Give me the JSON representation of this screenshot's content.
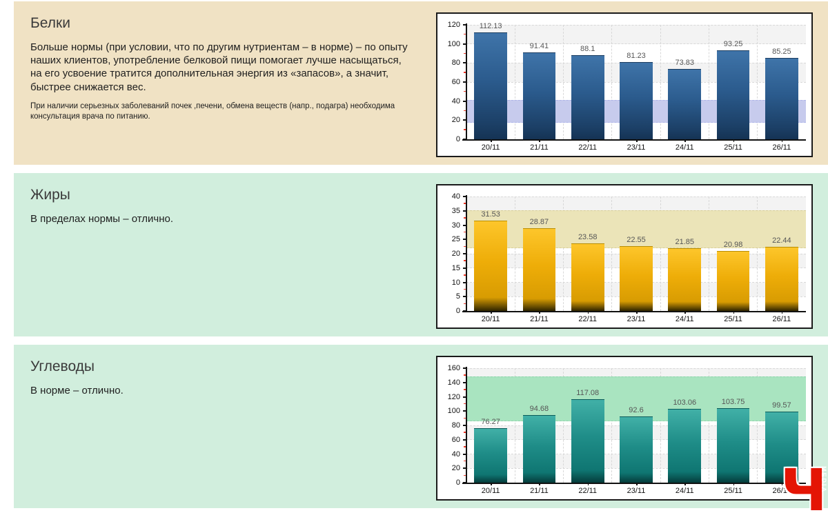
{
  "watermark": {
    "letter": "Ч",
    "vertical_label": "MEDIA",
    "color": "#e41505"
  },
  "panels": [
    {
      "title": "Белки",
      "body": "Больше нормы (при условии, что по другим нутриентам – в норме) – по опыту наших клиентов, употребление белковой пищи помогает лучше насыщаться, на его усвоение тратится дополнительная энергия из «запасов», а значит, быстрее снижается вес.",
      "note": "При наличии серьезных заболеваний почек ,печени, обмена веществ (напр., подагра) необходима консультация врача по питанию.",
      "bg": "#f0e2c4"
    },
    {
      "title": "Жиры",
      "body": "В пределах нормы – отлично.",
      "note": "",
      "bg": "#d1eedd"
    },
    {
      "title": "Углеводы",
      "body": "В норме – отлично.",
      "note": "",
      "bg": "#d1eedd"
    }
  ],
  "chart_data": [
    {
      "type": "bar",
      "title": "Белки",
      "categories": [
        "20/11",
        "21/11",
        "22/11",
        "23/11",
        "24/11",
        "25/11",
        "26/11"
      ],
      "values": [
        112.13,
        91.41,
        88.1,
        81.23,
        73.83,
        93.25,
        85.25
      ],
      "value_labels": [
        "112.13",
        "91.41",
        "88.1",
        "81.23",
        "73.83",
        "93.25",
        "85.25"
      ],
      "xlabel": "",
      "ylabel": "",
      "ylim": [
        0,
        120
      ],
      "ytick_step": 20,
      "minor_tick_step": 10,
      "grid": true,
      "legend": false,
      "norm_band": [
        17,
        41.5
      ],
      "colors": {
        "band": "#c7cbed",
        "band_edge": "#aeb4e8",
        "bar_gradient": [
          "#3f74a9",
          "#2b5b8d",
          "#1c4067",
          "#153354"
        ],
        "bar_border": "#1b3c5f"
      }
    },
    {
      "type": "bar",
      "title": "Жиры",
      "categories": [
        "20/11",
        "21/11",
        "22/11",
        "23/11",
        "24/11",
        "25/11",
        "26/11"
      ],
      "values": [
        31.53,
        28.87,
        23.58,
        22.55,
        21.85,
        20.98,
        22.44
      ],
      "value_labels": [
        "31.53",
        "28.87",
        "23.58",
        "22.55",
        "21.85",
        "20.98",
        "22.44"
      ],
      "xlabel": "",
      "ylabel": "",
      "ylim": [
        0,
        40
      ],
      "ytick_step": 5,
      "minor_tick_step": 2.5,
      "grid": true,
      "legend": false,
      "norm_band": [
        22,
        35.3
      ],
      "colors": {
        "band": "#ebe4b8",
        "band_edge": "#d8ce98",
        "bar_gradient": [
          "#fdc62b",
          "#eead08",
          "#d89c02",
          "#2e2400"
        ],
        "bar_border": "#b98d00"
      }
    },
    {
      "type": "bar",
      "title": "Углеводы",
      "categories": [
        "20/11",
        "21/11",
        "22/11",
        "23/11",
        "24/11",
        "25/11",
        "26/11"
      ],
      "values": [
        76.27,
        94.68,
        117.08,
        92.6,
        103.06,
        103.75,
        99.57
      ],
      "value_labels": [
        "76.27",
        "94.68",
        "117.08",
        "92.6",
        "103.06",
        "103.75",
        "99.57"
      ],
      "xlabel": "",
      "ylabel": "",
      "ylim": [
        0,
        160
      ],
      "ytick_step": 20,
      "minor_tick_step": 10,
      "grid": true,
      "legend": false,
      "norm_band": [
        86,
        148
      ],
      "colors": {
        "band": "#a9e4c0",
        "band_edge": "#8fd5ac",
        "bar_gradient": [
          "#41b0a7",
          "#1f8d88",
          "#0f7672",
          "#053c3b"
        ],
        "bar_border": "#0a5a58"
      }
    }
  ]
}
